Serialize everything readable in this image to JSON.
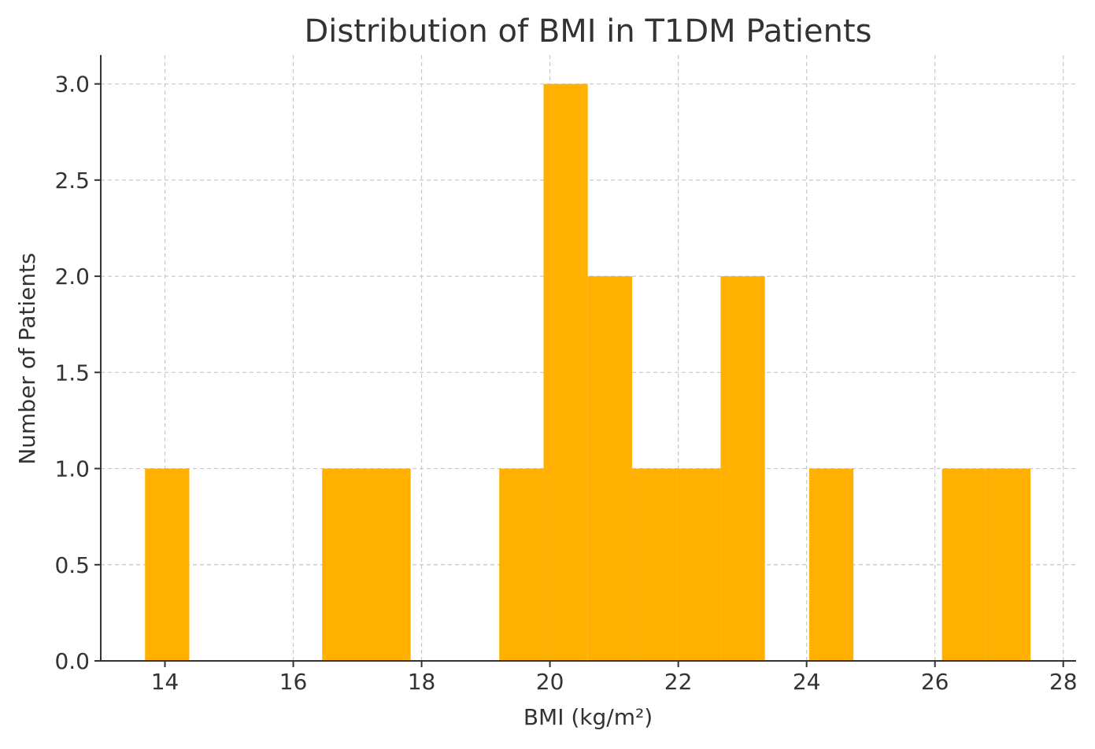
{
  "chart_data": {
    "type": "bar",
    "title": "Distribution of BMI in T1DM Patients",
    "xlabel": "BMI (kg/m²)",
    "ylabel": "Number of Patients",
    "xlim": [
      13.0,
      28.2
    ],
    "ylim": [
      0,
      3.15
    ],
    "x_ticks": [
      14,
      16,
      18,
      20,
      22,
      24,
      26,
      28
    ],
    "x_tick_labels": [
      "14",
      "16",
      "18",
      "20",
      "22",
      "24",
      "26",
      "28"
    ],
    "y_ticks": [
      0.0,
      0.5,
      1.0,
      1.5,
      2.0,
      2.5,
      3.0
    ],
    "y_tick_labels": [
      "0.0",
      "0.5",
      "1.0",
      "1.5",
      "2.0",
      "2.5",
      "3.0"
    ],
    "grid": true,
    "bar_color": "#FFB000",
    "bins": [
      {
        "start": 13.69,
        "end": 14.38,
        "count": 1
      },
      {
        "start": 16.45,
        "end": 17.14,
        "count": 1
      },
      {
        "start": 17.14,
        "end": 17.83,
        "count": 1
      },
      {
        "start": 19.21,
        "end": 19.9,
        "count": 1
      },
      {
        "start": 19.9,
        "end": 20.59,
        "count": 3
      },
      {
        "start": 20.59,
        "end": 21.28,
        "count": 2
      },
      {
        "start": 21.28,
        "end": 21.97,
        "count": 1
      },
      {
        "start": 21.97,
        "end": 22.66,
        "count": 1
      },
      {
        "start": 22.66,
        "end": 23.35,
        "count": 2
      },
      {
        "start": 24.04,
        "end": 24.73,
        "count": 1
      },
      {
        "start": 26.11,
        "end": 26.8,
        "count": 1
      },
      {
        "start": 26.8,
        "end": 27.49,
        "count": 1
      }
    ]
  }
}
